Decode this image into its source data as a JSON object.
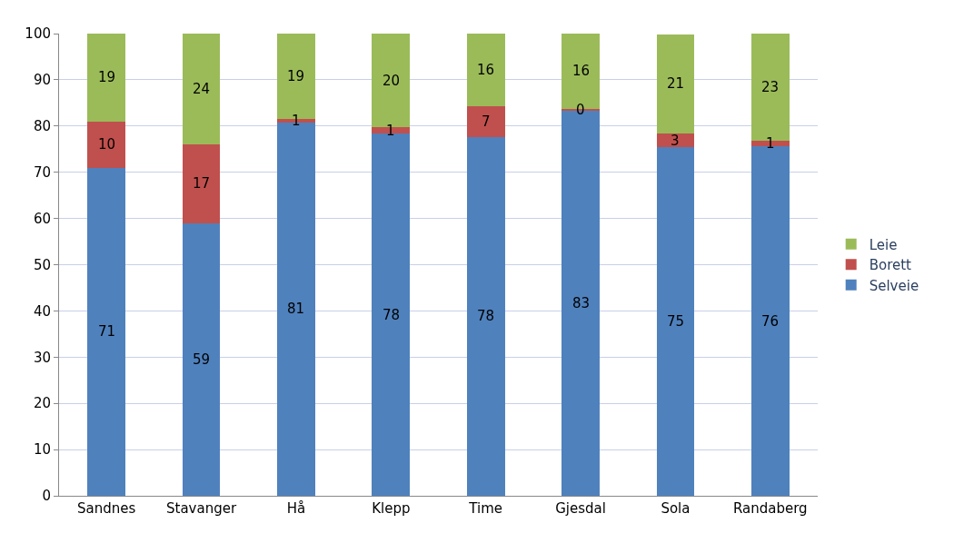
{
  "chart_data": {
    "type": "bar",
    "stacked": true,
    "categories": [
      "Sandnes",
      "Stavanger",
      "Hå",
      "Klepp",
      "Time",
      "Gjesdal",
      "Sola",
      "Randaberg"
    ],
    "series": [
      {
        "name": "Selveie",
        "color": "#4f81bd",
        "values": [
          71,
          59,
          80.8,
          78.3,
          77.7,
          83.3,
          75.4,
          75.6
        ],
        "value_labels": [
          "71",
          "59",
          "81",
          "78",
          "78",
          "83",
          "75",
          "76"
        ]
      },
      {
        "name": "Borett",
        "color": "#c0504d",
        "values": [
          10,
          17,
          0.7,
          1.4,
          6.6,
          0.4,
          3.0,
          1.3
        ],
        "value_labels": [
          "10",
          "17",
          "1",
          "1",
          "7",
          "0",
          "3",
          "1"
        ]
      },
      {
        "name": "Leie",
        "color": "#9bbb59",
        "values": [
          19,
          24,
          18.5,
          20.3,
          15.7,
          16.3,
          21.4,
          23.1
        ],
        "value_labels": [
          "19",
          "24",
          "19",
          "20",
          "16",
          "16",
          "21",
          "23"
        ]
      }
    ],
    "ylim": [
      0,
      100
    ],
    "yticks": [
      0,
      10,
      20,
      30,
      40,
      50,
      60,
      70,
      80,
      90,
      100
    ],
    "grid": "y",
    "legend": "right"
  }
}
